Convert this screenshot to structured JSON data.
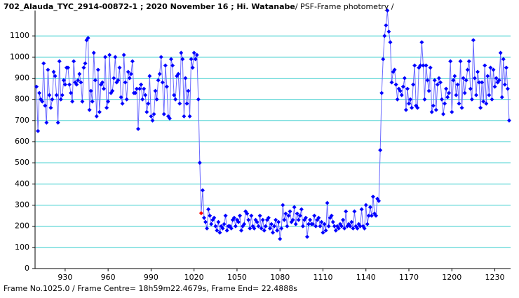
{
  "chart_data": {
    "type": "line",
    "title": "702_Alauda_TYC_2914-00872-1 ; 2020 November 16 ; Hi. Watanabe",
    "subtitle": " / PSF-Frame photometry /",
    "footer": "Frame No.1025.0 / Frame Centre= 18h59m22.4679s,  Frame End= 22.4888s",
    "highlight_x": 1025,
    "highlight_color": "#ff0000",
    "grid": true,
    "grid_color": "#33cccc",
    "xlim": [
      909,
      1241
    ],
    "xticks": [
      930,
      960,
      990,
      1020,
      1050,
      1080,
      1110,
      1140,
      1170,
      1200,
      1230
    ],
    "ylim": [
      0,
      1220
    ],
    "yticks": [
      0,
      100,
      200,
      300,
      400,
      500,
      600,
      700,
      800,
      900,
      1000,
      1100
    ],
    "x": [
      910,
      911,
      912,
      913,
      914,
      915,
      916,
      917,
      918,
      919,
      920,
      921,
      922,
      923,
      924,
      925,
      926,
      927,
      928,
      929,
      930,
      931,
      932,
      933,
      934,
      935,
      936,
      937,
      938,
      939,
      940,
      941,
      942,
      943,
      944,
      945,
      946,
      947,
      948,
      949,
      950,
      951,
      952,
      953,
      954,
      955,
      956,
      957,
      958,
      959,
      960,
      961,
      962,
      963,
      964,
      965,
      966,
      967,
      968,
      969,
      970,
      971,
      972,
      973,
      974,
      975,
      976,
      977,
      978,
      979,
      980,
      981,
      982,
      983,
      984,
      985,
      986,
      987,
      988,
      989,
      990,
      991,
      992,
      993,
      994,
      995,
      996,
      997,
      998,
      999,
      1000,
      1001,
      1002,
      1003,
      1004,
      1005,
      1006,
      1007,
      1008,
      1009,
      1010,
      1011,
      1012,
      1013,
      1014,
      1015,
      1016,
      1017,
      1018,
      1019,
      1020,
      1021,
      1022,
      1023,
      1024,
      1025,
      1026,
      1027,
      1028,
      1029,
      1030,
      1031,
      1032,
      1033,
      1034,
      1035,
      1036,
      1037,
      1038,
      1039,
      1040,
      1041,
      1042,
      1043,
      1044,
      1045,
      1046,
      1047,
      1048,
      1049,
      1050,
      1051,
      1052,
      1053,
      1054,
      1055,
      1056,
      1057,
      1058,
      1059,
      1060,
      1061,
      1062,
      1063,
      1064,
      1065,
      1066,
      1067,
      1068,
      1069,
      1070,
      1071,
      1072,
      1073,
      1074,
      1075,
      1076,
      1077,
      1078,
      1079,
      1080,
      1081,
      1082,
      1083,
      1084,
      1085,
      1086,
      1087,
      1088,
      1089,
      1090,
      1091,
      1092,
      1093,
      1094,
      1095,
      1096,
      1097,
      1098,
      1099,
      1100,
      1101,
      1102,
      1103,
      1104,
      1105,
      1106,
      1107,
      1108,
      1109,
      1110,
      1111,
      1112,
      1113,
      1114,
      1115,
      1116,
      1117,
      1118,
      1119,
      1120,
      1121,
      1122,
      1123,
      1124,
      1125,
      1126,
      1127,
      1128,
      1129,
      1130,
      1131,
      1132,
      1133,
      1134,
      1135,
      1136,
      1137,
      1138,
      1139,
      1140,
      1141,
      1142,
      1143,
      1144,
      1145,
      1146,
      1147,
      1148,
      1149,
      1150,
      1151,
      1152,
      1153,
      1154,
      1155,
      1156,
      1157,
      1158,
      1159,
      1160,
      1161,
      1162,
      1163,
      1164,
      1165,
      1166,
      1167,
      1168,
      1169,
      1170,
      1171,
      1172,
      1173,
      1174,
      1175,
      1176,
      1177,
      1178,
      1179,
      1180,
      1181,
      1182,
      1183,
      1184,
      1185,
      1186,
      1187,
      1188,
      1189,
      1190,
      1191,
      1192,
      1193,
      1194,
      1195,
      1196,
      1197,
      1198,
      1199,
      1200,
      1201,
      1202,
      1203,
      1204,
      1205,
      1206,
      1207,
      1208,
      1209,
      1210,
      1211,
      1212,
      1213,
      1214,
      1215,
      1216,
      1217,
      1218,
      1219,
      1220,
      1221,
      1222,
      1223,
      1224,
      1225,
      1226,
      1227,
      1228,
      1229,
      1230,
      1231,
      1232,
      1233,
      1234,
      1235,
      1236,
      1237,
      1238,
      1239,
      1240
    ],
    "series": [
      {
        "color": "#0000ff",
        "line_color": "#6a6aff",
        "values": [
          860,
          650,
          830,
          800,
          790,
          970,
          770,
          690,
          940,
          820,
          760,
          800,
          930,
          910,
          820,
          690,
          980,
          800,
          820,
          890,
          870,
          950,
          950,
          870,
          830,
          790,
          980,
          880,
          870,
          890,
          920,
          880,
          790,
          950,
          970,
          1080,
          1090,
          750,
          840,
          790,
          1020,
          890,
          720,
          940,
          740,
          870,
          880,
          850,
          1000,
          760,
          790,
          1010,
          830,
          840,
          900,
          1000,
          880,
          890,
          950,
          810,
          780,
          1010,
          880,
          800,
          930,
          900,
          920,
          980,
          830,
          830,
          850,
          660,
          850,
          870,
          800,
          850,
          820,
          740,
          780,
          910,
          720,
          700,
          730,
          840,
          800,
          890,
          920,
          1000,
          880,
          730,
          960,
          860,
          720,
          710,
          990,
          960,
          820,
          800,
          910,
          920,
          780,
          1020,
          990,
          720,
          900,
          780,
          840,
          720,
          990,
          950,
          1020,
          990,
          1010,
          800,
          500,
          262,
          370,
          240,
          220,
          190,
          280,
          250,
          210,
          230,
          240,
          200,
          180,
          220,
          170,
          200,
          190,
          210,
          250,
          180,
          200,
          200,
          190,
          230,
          240,
          200,
          230,
          220,
          250,
          180,
          200,
          210,
          270,
          260,
          230,
          190,
          250,
          200,
          190,
          230,
          220,
          200,
          250,
          190,
          230,
          180,
          200,
          230,
          240,
          190,
          210,
          170,
          200,
          230,
          180,
          220,
          140,
          190,
          300,
          230,
          260,
          200,
          250,
          270,
          220,
          230,
          290,
          210,
          260,
          230,
          250,
          280,
          200,
          230,
          240,
          150,
          210,
          230,
          210,
          210,
          250,
          200,
          230,
          240,
          200,
          220,
          170,
          210,
          180,
          310,
          200,
          240,
          250,
          220,
          200,
          180,
          200,
          190,
          210,
          200,
          230,
          190,
          270,
          200,
          210,
          200,
          220,
          190,
          270,
          200,
          190,
          210,
          200,
          280,
          200,
          190,
          300,
          210,
          250,
          290,
          250,
          340,
          260,
          250,
          330,
          320,
          560,
          830,
          990,
          1100,
          1150,
          1220,
          1120,
          1070,
          880,
          930,
          940,
          870,
          800,
          850,
          840,
          820,
          860,
          900,
          750,
          850,
          780,
          800,
          760,
          870,
          960,
          770,
          760,
          950,
          960,
          1070,
          960,
          800,
          960,
          890,
          840,
          950,
          740,
          770,
          890,
          750,
          870,
          900,
          880,
          800,
          730,
          780,
          850,
          810,
          830,
          980,
          740,
          890,
          910,
          820,
          870,
          780,
          980,
          760,
          900,
          830,
          890,
          940,
          980,
          850,
          800,
          1080,
          900,
          820,
          930,
          880,
          760,
          880,
          790,
          960,
          780,
          910,
          820,
          950,
          800,
          940,
          860,
          900,
          880,
          890,
          1020,
          810,
          990,
          870,
          950,
          850,
          700
        ]
      }
    ]
  }
}
